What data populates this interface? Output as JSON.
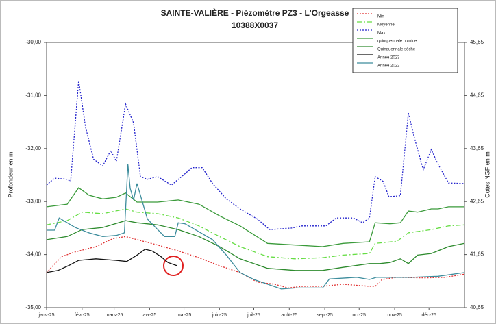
{
  "chart_data": {
    "type": "line",
    "title": "SAINTE-VALIÈRE - Piézomètre PZ3 - L'Orgeasse",
    "subtitle": "10388X0037",
    "y_label": "Profondeur en m",
    "y2_label": "Cotes NGF en m",
    "legend": "upper right",
    "grid": false,
    "xlim": [
      0,
      365
    ],
    "xticks": [
      {
        "value": 0,
        "label": "janv-25"
      },
      {
        "value": 31,
        "label": "févr-25"
      },
      {
        "value": 59,
        "label": "mars-25"
      },
      {
        "value": 90,
        "label": "avr-25"
      },
      {
        "value": 120,
        "label": "mai-25"
      },
      {
        "value": 151,
        "label": "juin-25"
      },
      {
        "value": 181,
        "label": "juil-25"
      },
      {
        "value": 212,
        "label": "août-25"
      },
      {
        "value": 243,
        "label": "sept-25"
      },
      {
        "value": 273,
        "label": "oct-25"
      },
      {
        "value": 304,
        "label": "nov-25"
      },
      {
        "value": 334,
        "label": "déc-25"
      }
    ],
    "ylim": [
      -35,
      -30
    ],
    "yticks": [
      {
        "value": -30,
        "label": "-30,00"
      },
      {
        "value": -31,
        "label": "-31,00"
      },
      {
        "value": -32,
        "label": "-32,00"
      },
      {
        "value": -33,
        "label": "-33,00"
      },
      {
        "value": -34,
        "label": "-34,00"
      },
      {
        "value": -35,
        "label": "-35,00"
      }
    ],
    "y2lim": [
      40.65,
      45.65
    ],
    "y2ticks": [
      {
        "value": 45.65,
        "label": "45,65"
      },
      {
        "value": 44.65,
        "label": "44,65"
      },
      {
        "value": 43.65,
        "label": "43,65"
      },
      {
        "value": 42.65,
        "label": "42,65"
      },
      {
        "value": 41.65,
        "label": "41,65"
      },
      {
        "value": 40.65,
        "label": "40,65"
      }
    ],
    "series": [
      {
        "name": "Min",
        "color": "#e03030",
        "dash": "2 2",
        "x": [
          0,
          13,
          25,
          43,
          58,
          69,
          79,
          97,
          115,
          133,
          151,
          169,
          184,
          199,
          211,
          223,
          241,
          259,
          282,
          287,
          293,
          306,
          330,
          348,
          365
        ],
        "values": [
          -34.34,
          -34.04,
          -33.95,
          -33.85,
          -33.7,
          -33.66,
          -33.72,
          -33.82,
          -33.93,
          -34.06,
          -34.21,
          -34.34,
          -34.52,
          -34.56,
          -34.63,
          -34.6,
          -34.6,
          -34.56,
          -34.6,
          -34.6,
          -34.47,
          -34.43,
          -34.44,
          -34.43,
          -34.37
        ]
      },
      {
        "name": "Moyenne",
        "color": "#66dd44",
        "dash": "7 3 2 3",
        "x": [
          0,
          18,
          31,
          49,
          69,
          79,
          97,
          115,
          133,
          151,
          169,
          193,
          217,
          241,
          259,
          282,
          287,
          306,
          316,
          336,
          351,
          365
        ],
        "values": [
          -33.44,
          -33.36,
          -33.2,
          -33.23,
          -33.14,
          -33.2,
          -33.23,
          -33.31,
          -33.46,
          -33.66,
          -33.85,
          -34.04,
          -34.08,
          -34.06,
          -34.01,
          -33.98,
          -33.79,
          -33.75,
          -33.59,
          -33.53,
          -33.46,
          -33.44
        ]
      },
      {
        "name": "Max",
        "color": "#2222cc",
        "dash": "2 2",
        "x": [
          0,
          7,
          18,
          21,
          28,
          34,
          41,
          49,
          56,
          61,
          69,
          76,
          82,
          88,
          97,
          109,
          118,
          127,
          136,
          145,
          157,
          169,
          184,
          195,
          214,
          223,
          244,
          253,
          268,
          276,
          282,
          287,
          294,
          299,
          309,
          316,
          321,
          329,
          336,
          342,
          351,
          365
        ],
        "values": [
          -32.69,
          -32.56,
          -32.58,
          -32.62,
          -30.72,
          -31.59,
          -32.2,
          -32.33,
          -32.04,
          -32.24,
          -31.16,
          -31.52,
          -32.53,
          -32.58,
          -32.53,
          -32.69,
          -32.53,
          -32.36,
          -32.36,
          -32.66,
          -32.95,
          -33.14,
          -33.33,
          -33.53,
          -33.5,
          -33.46,
          -33.46,
          -33.31,
          -33.31,
          -33.4,
          -33.31,
          -32.53,
          -32.62,
          -32.91,
          -32.89,
          -31.33,
          -31.78,
          -32.4,
          -32.02,
          -32.3,
          -32.65,
          -32.66
        ]
      },
      {
        "name": "quinquennale humide",
        "color": "#3a9a3a",
        "dash": "",
        "x": [
          0,
          18,
          28,
          37,
          49,
          61,
          69,
          79,
          97,
          115,
          133,
          151,
          169,
          193,
          217,
          241,
          259,
          282,
          287,
          300,
          309,
          316,
          324,
          336,
          342,
          351,
          365
        ],
        "values": [
          -33.1,
          -33.05,
          -32.74,
          -32.88,
          -32.95,
          -32.92,
          -32.84,
          -33.01,
          -33.01,
          -32.97,
          -33.05,
          -33.27,
          -33.46,
          -33.79,
          -33.82,
          -33.85,
          -33.79,
          -33.76,
          -33.4,
          -33.42,
          -33.4,
          -33.18,
          -33.2,
          -33.14,
          -33.14,
          -33.1,
          -33.1
        ]
      },
      {
        "name": "Quinquennale sèche",
        "color": "#2e8b2e",
        "dash": "",
        "x": [
          0,
          18,
          31,
          49,
          69,
          79,
          97,
          115,
          133,
          151,
          169,
          193,
          217,
          241,
          259,
          282,
          291,
          300,
          309,
          316,
          324,
          336,
          351,
          365
        ],
        "values": [
          -33.72,
          -33.66,
          -33.53,
          -33.49,
          -33.36,
          -33.4,
          -33.44,
          -33.53,
          -33.66,
          -33.85,
          -34.08,
          -34.26,
          -34.3,
          -34.3,
          -34.24,
          -34.17,
          -34.17,
          -34.15,
          -34.08,
          -34.17,
          -34.01,
          -33.98,
          -33.85,
          -33.79
        ]
      },
      {
        "name": "Année 2023",
        "color": "#111111",
        "dash": "",
        "x": [
          0,
          10,
          19,
          28,
          43,
          61,
          70,
          79,
          86,
          92,
          100,
          106,
          114
        ],
        "values": [
          -34.34,
          -34.3,
          -34.21,
          -34.11,
          -34.08,
          -34.11,
          -34.13,
          -34.01,
          -33.9,
          -33.93,
          -34.04,
          -34.15,
          -34.21
        ]
      },
      {
        "name": "Année 2022",
        "color": "#3c8c9c",
        "dash": "",
        "x": [
          0,
          7,
          11,
          18,
          25,
          37,
          49,
          61,
          68,
          71,
          73,
          76,
          79,
          82,
          88,
          103,
          112,
          115,
          121,
          133,
          145,
          157,
          169,
          181,
          193,
          205,
          217,
          241,
          247,
          271,
          282,
          288,
          318,
          342,
          365
        ],
        "values": [
          -33.54,
          -33.54,
          -33.31,
          -33.4,
          -33.49,
          -33.59,
          -33.66,
          -33.64,
          -33.59,
          -32.3,
          -32.75,
          -32.97,
          -32.66,
          -32.88,
          -33.33,
          -33.66,
          -33.66,
          -33.4,
          -33.42,
          -33.57,
          -33.72,
          -34.01,
          -34.34,
          -34.47,
          -34.56,
          -34.65,
          -34.63,
          -34.63,
          -34.46,
          -34.43,
          -34.47,
          -34.43,
          -34.43,
          -34.41,
          -34.34
        ]
      }
    ]
  }
}
